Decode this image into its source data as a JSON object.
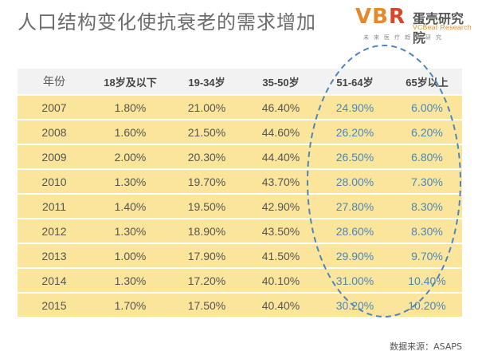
{
  "title": "人口结构变化使抗衰老的需求增加",
  "logo": {
    "mark_v": "V",
    "mark_b": "B",
    "mark_r": "R",
    "name_cn": "蛋壳研究院",
    "name_en": "VCBeat Research",
    "tagline": "未来医疗趋势研究"
  },
  "table": {
    "headers": [
      "年份",
      "18岁及以下",
      "19-34岁",
      "35-50岁",
      "51-64岁",
      "65岁以上"
    ],
    "rows": [
      [
        "2007",
        "1.80%",
        "21.00%",
        "46.40%",
        "24.90%",
        "6.00%"
      ],
      [
        "2008",
        "1.60%",
        "21.50%",
        "44.60%",
        "26.20%",
        "6.20%"
      ],
      [
        "2009",
        "2.00%",
        "20.30%",
        "44.40%",
        "26.50%",
        "6.80%"
      ],
      [
        "2010",
        "1.30%",
        "19.70%",
        "43.70%",
        "28.00%",
        "7.30%"
      ],
      [
        "2011",
        "1.40%",
        "19.50%",
        "42.90%",
        "27.80%",
        "8.30%"
      ],
      [
        "2012",
        "1.30%",
        "18.90%",
        "43.50%",
        "28.60%",
        "8.30%"
      ],
      [
        "2013",
        "1.00%",
        "17.90%",
        "41.50%",
        "29.90%",
        "9.70%"
      ],
      [
        "2014",
        "1.30%",
        "17.20%",
        "40.10%",
        "31.00%",
        "10.40%"
      ],
      [
        "2015",
        "1.70%",
        "17.50%",
        "40.40%",
        "30.20%",
        "10.20%"
      ]
    ]
  },
  "colors": {
    "row_fill": "#fbe59a",
    "highlight_text": "#4a86c0",
    "ellipse_stroke": "#4a86c0",
    "logo_orange": "#e58a2b"
  },
  "source": "数据来源：ASAPS"
}
